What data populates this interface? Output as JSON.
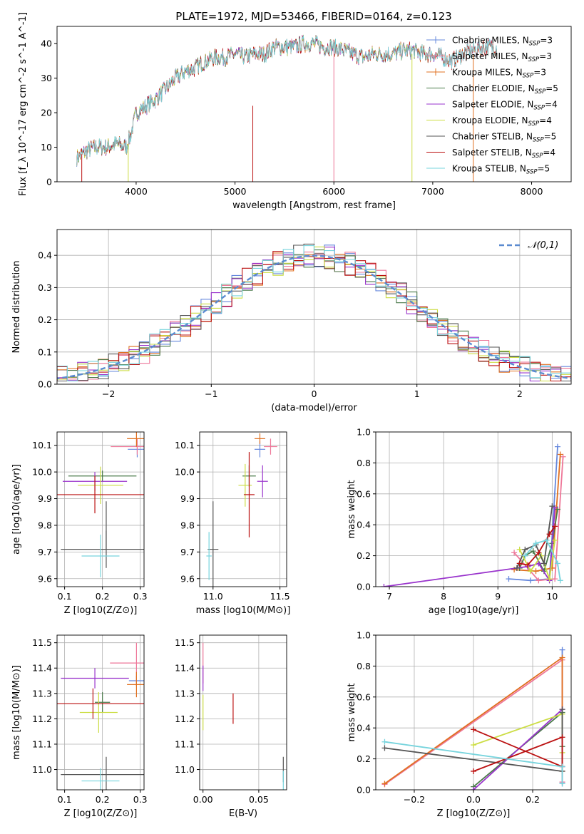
{
  "figure_title": "PLATE=1972, MJD=53466, FIBERID=0164, z=0.123",
  "series_colors": [
    "#6688dd",
    "#ee7799",
    "#e07020",
    "#4a7a4a",
    "#9933cc",
    "#ccdd44",
    "#555555",
    "#bb1111",
    "#77d4dd"
  ],
  "chart_data": [
    {
      "id": "spectrum",
      "type": "line",
      "title": "",
      "xlabel": "wavelength [Angstrom, rest frame]",
      "ylabel": "Flux [f_λ 10^-17 erg cm^-2 s^-1 A^-1]",
      "xlim": [
        3200,
        8400
      ],
      "ylim": [
        0,
        45
      ],
      "xticks": [
        4000,
        5000,
        6000,
        7000,
        8000
      ],
      "yticks": [
        0,
        10,
        20,
        30,
        40
      ],
      "legend": "top-right",
      "grid": false,
      "series": [
        {
          "name": "Chabrier MILES, N_SSP=3"
        },
        {
          "name": "Salpeter MILES, N_SSP=3"
        },
        {
          "name": "Kroupa MILES, N_SSP=3"
        },
        {
          "name": "Chabrier ELODIE, N_SSP=5"
        },
        {
          "name": "Salpeter ELODIE, N_SSP=4"
        },
        {
          "name": "Kroupa ELODIE, N_SSP=4"
        },
        {
          "name": "Chabrier STELIB, N_SSP=5"
        },
        {
          "name": "Salpeter STELIB, N_SSP=4"
        },
        {
          "name": "Kroupa STELIB, N_SSP=5"
        }
      ],
      "continuum": {
        "x": [
          3400,
          3500,
          3600,
          3700,
          3800,
          3900,
          3950,
          4000,
          4100,
          4200,
          4300,
          4400,
          4500,
          4600,
          4700,
          4800,
          4900,
          5000,
          5100,
          5200,
          5300,
          5400,
          5500,
          5600,
          5700,
          5800,
          5900,
          6000,
          6100,
          6200,
          6300,
          6400,
          6500,
          6600,
          6700,
          6800,
          6900,
          7000,
          7100,
          7200,
          7300,
          7400,
          7500,
          7600
        ],
        "y": [
          7,
          9,
          10,
          10,
          11,
          10,
          14,
          20,
          22,
          24,
          27,
          30,
          32,
          33,
          35,
          36,
          36,
          37,
          36,
          37,
          37,
          39,
          39,
          39,
          40,
          40,
          39,
          39,
          38,
          37,
          36,
          37,
          37,
          37,
          38,
          38,
          37,
          37,
          36,
          35,
          37,
          38,
          39,
          39
        ]
      }
    },
    {
      "id": "residual-hist",
      "type": "histogram",
      "xlabel": "(data-model)/error",
      "ylabel": "Normed distribution",
      "xlim": [
        -2.5,
        2.5
      ],
      "ylim": [
        0,
        0.48
      ],
      "xticks": [
        -2,
        -1,
        0,
        1,
        2
      ],
      "yticks": [
        0.0,
        0.1,
        0.2,
        0.3,
        0.4
      ],
      "grid": true,
      "legend": "top-right",
      "reference": {
        "name": "𝒩(0,1)",
        "mu": 0,
        "sigma": 1
      },
      "bin_width": 0.1
    },
    {
      "id": "age-vs-Z",
      "type": "errorbar",
      "xlabel": "Z [log10(Z/Z⊙)]",
      "ylabel": "age [log10(age/yr)]",
      "xlim": [
        0.08,
        0.31
      ],
      "ylim": [
        9.57,
        10.15
      ],
      "xticks": [
        0.1,
        0.2,
        0.3
      ],
      "yticks": [
        9.6,
        9.7,
        9.8,
        9.9,
        10.0,
        10.1
      ],
      "grid": true,
      "points": [
        {
          "s": 0,
          "x": 0.292,
          "y": 10.085,
          "xerr": 0.025,
          "yerr": 0.03
        },
        {
          "s": 1,
          "x": 0.292,
          "y": 10.095,
          "xerr": 0.07,
          "yerr": 0.03
        },
        {
          "s": 2,
          "x": 0.29,
          "y": 10.125,
          "xerr": 0.025,
          "yerr": 0.03
        },
        {
          "s": 3,
          "x": 0.2,
          "y": 9.985,
          "xerr": 0.09,
          "yerr": 0.02
        },
        {
          "s": 4,
          "x": 0.18,
          "y": 9.965,
          "xerr": 0.085,
          "yerr": 0.035
        },
        {
          "s": 5,
          "x": 0.195,
          "y": 9.95,
          "xerr": 0.06,
          "yerr": 0.07
        },
        {
          "s": 6,
          "x": 0.21,
          "y": 9.71,
          "xerr": 0.12,
          "yerr": 0.07
        },
        {
          "s": 7,
          "x": 0.18,
          "y": 9.915,
          "xerr": 0.14,
          "yerr": 0.07
        },
        {
          "s": 8,
          "x": 0.195,
          "y": 9.685,
          "xerr": 0.05,
          "yerr": 0.08
        },
        {
          "s": 6,
          "x": 0.21,
          "y": 9.8,
          "xerr": 0.0,
          "yerr": 0.09
        }
      ]
    },
    {
      "id": "age-vs-mass",
      "type": "errorbar",
      "xlabel": "mass [log10(M/M⊙)]",
      "ylabel": "",
      "xlim": [
        10.9,
        11.55
      ],
      "ylim": [
        9.57,
        10.15
      ],
      "xticks": [
        11.0,
        11.5
      ],
      "yticks": [
        9.6,
        9.7,
        9.8,
        9.9,
        10.0,
        10.1
      ],
      "grid": true,
      "points": [
        {
          "s": 0,
          "x": 11.35,
          "y": 10.085,
          "xerr": 0.04,
          "yerr": 0.03
        },
        {
          "s": 1,
          "x": 11.43,
          "y": 10.095,
          "xerr": 0.05,
          "yerr": 0.03
        },
        {
          "s": 2,
          "x": 11.35,
          "y": 10.125,
          "xerr": 0.04,
          "yerr": 0.02
        },
        {
          "s": 3,
          "x": 11.27,
          "y": 9.985,
          "xerr": 0.05,
          "yerr": 0.04
        },
        {
          "s": 4,
          "x": 11.37,
          "y": 9.965,
          "xerr": 0.04,
          "yerr": 0.06
        },
        {
          "s": 5,
          "x": 11.24,
          "y": 9.95,
          "xerr": 0.05,
          "yerr": 0.08
        },
        {
          "s": 6,
          "x": 11.0,
          "y": 9.71,
          "xerr": 0.04,
          "yerr": 0.18
        },
        {
          "s": 7,
          "x": 11.27,
          "y": 9.915,
          "xerr": 0.04,
          "yerr": 0.16
        },
        {
          "s": 8,
          "x": 10.97,
          "y": 9.685,
          "xerr": 0.02,
          "yerr": 0.09
        }
      ]
    },
    {
      "id": "weight-vs-age",
      "type": "line",
      "xlabel": "age [log10(age/yr)]",
      "ylabel": "mass weight",
      "xlim": [
        6.75,
        10.35
      ],
      "ylim": [
        0,
        1.0
      ],
      "xticks": [
        7,
        8,
        9,
        10
      ],
      "yticks": [
        0.0,
        0.2,
        0.4,
        0.6,
        0.8,
        1.0
      ],
      "grid": true,
      "series": [
        {
          "s": 0,
          "x": [
            9.2,
            9.6,
            9.95,
            10.1
          ],
          "y": [
            0.05,
            0.04,
            0.05,
            0.905
          ]
        },
        {
          "s": 1,
          "x": [
            9.3,
            9.75,
            10.05,
            10.2
          ],
          "y": [
            0.22,
            0.04,
            0.05,
            0.84
          ]
        },
        {
          "s": 2,
          "x": [
            9.3,
            9.7,
            10.0,
            10.15
          ],
          "y": [
            0.11,
            0.1,
            0.12,
            0.855
          ]
        },
        {
          "s": 3,
          "x": [
            9.4,
            9.5,
            9.65,
            9.85,
            10.0,
            10.1
          ],
          "y": [
            0.12,
            0.2,
            0.23,
            0.1,
            0.28,
            0.5
          ]
        },
        {
          "s": 4,
          "x": [
            6.9,
            9.55,
            9.75,
            9.95,
            10.05
          ],
          "y": [
            0.0,
            0.13,
            0.15,
            0.04,
            0.51
          ]
        },
        {
          "s": 5,
          "x": [
            9.4,
            9.6,
            9.8,
            9.95,
            10.05
          ],
          "y": [
            0.24,
            0.1,
            0.2,
            0.05,
            0.3
          ]
        },
        {
          "s": 6,
          "x": [
            9.35,
            9.5,
            9.7,
            9.85,
            10.0
          ],
          "y": [
            0.12,
            0.24,
            0.27,
            0.15,
            0.52
          ]
        },
        {
          "s": 7,
          "x": [
            9.4,
            9.55,
            9.75,
            9.95,
            10.05
          ],
          "y": [
            0.15,
            0.14,
            0.22,
            0.34,
            0.39
          ]
        },
        {
          "s": 8,
          "x": [
            9.5,
            9.7,
            9.9,
            10.1,
            10.15
          ],
          "y": [
            0.2,
            0.28,
            0.3,
            0.15,
            0.04
          ]
        }
      ]
    },
    {
      "id": "mass-vs-Z",
      "type": "errorbar",
      "xlabel": "Z [log10(Z/Z⊙)]",
      "ylabel": "mass [log10(M/M⊙)]",
      "xlim": [
        0.08,
        0.31
      ],
      "ylim": [
        10.92,
        11.53
      ],
      "xticks": [
        0.1,
        0.2,
        0.3
      ],
      "yticks": [
        11.0,
        11.1,
        11.2,
        11.3,
        11.4,
        11.5
      ],
      "grid": true,
      "points": [
        {
          "s": 0,
          "x": 0.29,
          "y": 11.35,
          "xerr": 0.02,
          "yerr": 0.02
        },
        {
          "s": 1,
          "x": 0.29,
          "y": 11.42,
          "xerr": 0.07,
          "yerr": 0.08
        },
        {
          "s": 2,
          "x": 0.29,
          "y": 11.335,
          "xerr": 0.025,
          "yerr": 0.05
        },
        {
          "s": 3,
          "x": 0.2,
          "y": 11.265,
          "xerr": 0.02,
          "yerr": 0.04
        },
        {
          "s": 4,
          "x": 0.18,
          "y": 11.36,
          "xerr": 0.09,
          "yerr": 0.04
        },
        {
          "s": 5,
          "x": 0.19,
          "y": 11.225,
          "xerr": 0.05,
          "yerr": 0.08
        },
        {
          "s": 6,
          "x": 0.21,
          "y": 10.98,
          "xerr": 0.12,
          "yerr": 0.07
        },
        {
          "s": 7,
          "x": 0.175,
          "y": 11.26,
          "xerr": 0.14,
          "yerr": 0.06
        },
        {
          "s": 8,
          "x": 0.195,
          "y": 10.955,
          "xerr": 0.05,
          "yerr": 0.05
        }
      ]
    },
    {
      "id": "mass-vs-EBV",
      "type": "errorbar",
      "xlabel": "E(B-V)",
      "ylabel": "",
      "xlim": [
        -0.003,
        0.075
      ],
      "ylim": [
        10.92,
        11.53
      ],
      "xticks": [
        0.0,
        0.05
      ],
      "yticks": [
        11.0,
        11.1,
        11.2,
        11.3,
        11.4,
        11.5
      ],
      "grid": true,
      "points": [
        {
          "s": 1,
          "x": 0.0,
          "y": 11.42,
          "xerr": 0,
          "yerr": 0.08
        },
        {
          "s": 4,
          "x": 0.0,
          "y": 11.36,
          "xerr": 0,
          "yerr": 0.05
        },
        {
          "s": 5,
          "x": 0.0,
          "y": 11.225,
          "xerr": 0,
          "yerr": 0.07
        },
        {
          "s": 7,
          "x": 0.027,
          "y": 11.24,
          "xerr": 0,
          "yerr": 0.06
        },
        {
          "s": 6,
          "x": 0.072,
          "y": 11.0,
          "xerr": 0,
          "yerr": 0.05
        },
        {
          "s": 8,
          "x": 0.072,
          "y": 10.955,
          "xerr": 0,
          "yerr": 0.04
        }
      ]
    },
    {
      "id": "weight-vs-Z",
      "type": "line",
      "xlabel": "Z [log10(Z/Z⊙)]",
      "ylabel": "mass weight",
      "xlim": [
        -0.33,
        0.33
      ],
      "ylim": [
        0,
        1.0
      ],
      "xticks": [
        -0.2,
        0.0,
        0.2
      ],
      "yticks": [
        0.0,
        0.2,
        0.4,
        0.6,
        0.8,
        1.0
      ],
      "grid": true,
      "series": [
        {
          "s": 0,
          "x": [
            0.3,
            0.3,
            0.3
          ],
          "y": [
            0.905,
            0.05,
            0.04
          ]
        },
        {
          "s": 1,
          "x": [
            -0.3,
            0.3,
            0.3
          ],
          "y": [
            0.035,
            0.84,
            0.05
          ]
        },
        {
          "s": 2,
          "x": [
            -0.3,
            0.3,
            0.3
          ],
          "y": [
            0.04,
            0.855,
            0.12
          ]
        },
        {
          "s": 3,
          "x": [
            0.0,
            0.3,
            0.3
          ],
          "y": [
            0.02,
            0.5,
            0.28
          ]
        },
        {
          "s": 4,
          "x": [
            0.0,
            0.3,
            0.3
          ],
          "y": [
            0.0,
            0.52,
            0.15
          ]
        },
        {
          "s": 5,
          "x": [
            0.0,
            0.3,
            0.3
          ],
          "y": [
            0.29,
            0.49,
            0.24
          ]
        },
        {
          "s": 6,
          "x": [
            -0.3,
            0.3,
            0.3
          ],
          "y": [
            0.27,
            0.12,
            0.52
          ]
        },
        {
          "s": 7,
          "x": [
            0.0,
            0.3,
            0.3,
            0.0
          ],
          "y": [
            0.39,
            0.15,
            0.34,
            0.12
          ]
        },
        {
          "s": 8,
          "x": [
            -0.3,
            0.3,
            0.3
          ],
          "y": [
            0.31,
            0.15,
            0.04
          ]
        }
      ]
    }
  ]
}
